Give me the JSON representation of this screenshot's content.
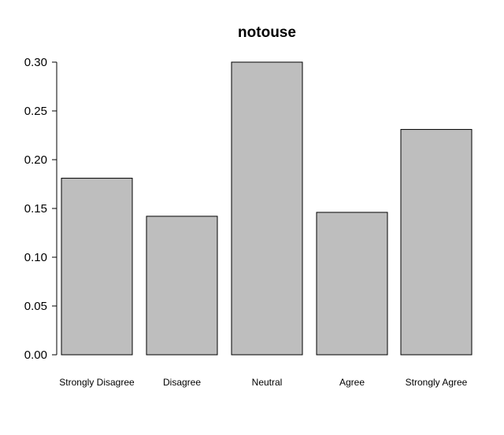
{
  "chart_data": {
    "type": "bar",
    "title": "notouse",
    "xlabel": "",
    "ylabel": "",
    "categories": [
      "Strongly Disagree",
      "Disagree",
      "Neutral",
      "Agree",
      "Strongly Agree"
    ],
    "values": [
      0.181,
      0.142,
      0.3,
      0.146,
      0.231
    ],
    "ylim": [
      0,
      0.3
    ],
    "yticks": [
      0.0,
      0.05,
      0.1,
      0.15,
      0.2,
      0.25,
      0.3
    ],
    "ytick_labels": [
      "0.00",
      "0.05",
      "0.10",
      "0.15",
      "0.20",
      "0.25",
      "0.30"
    ],
    "grid": false,
    "legend": "none",
    "colors": {
      "bar_fill": "#bebebe",
      "bar_stroke": "#000000"
    }
  }
}
